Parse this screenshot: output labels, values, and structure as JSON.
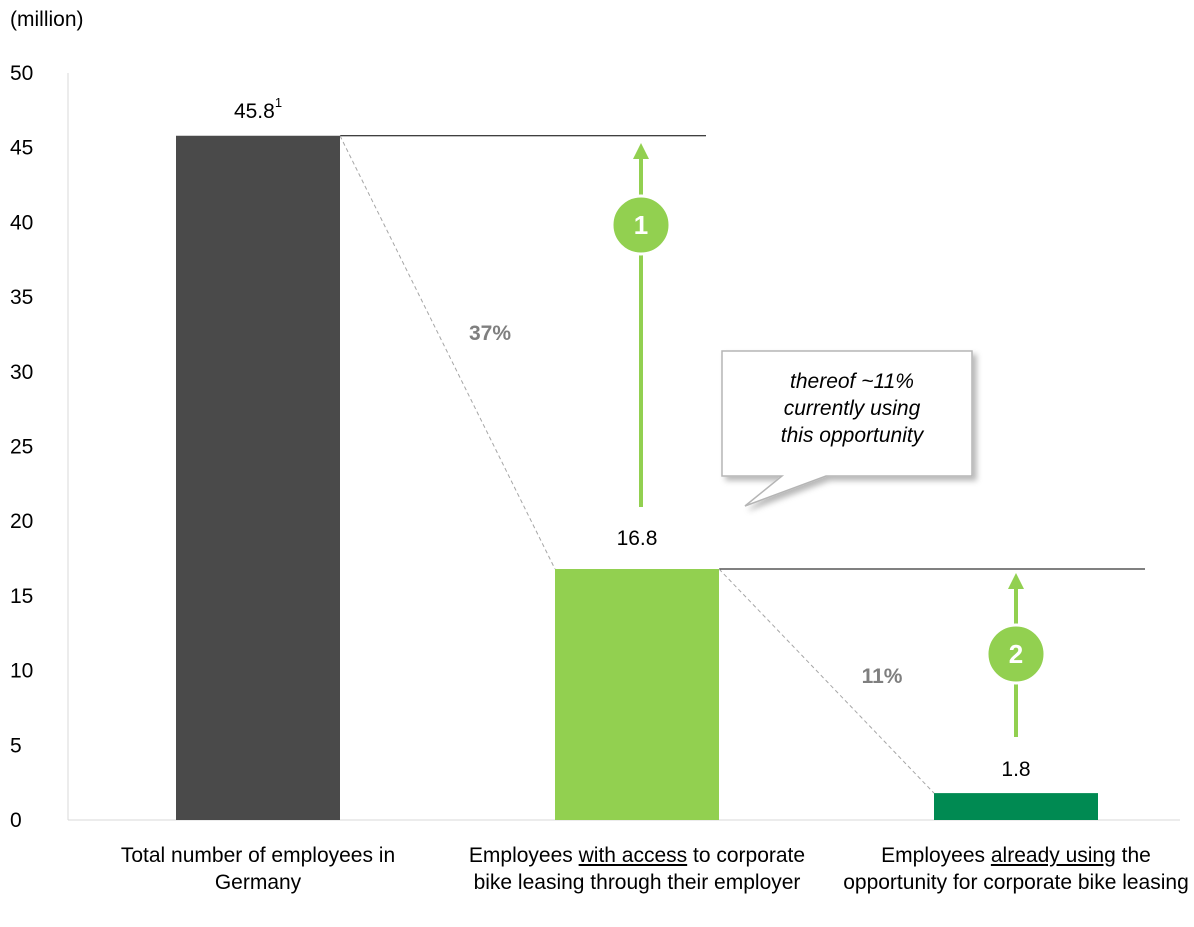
{
  "chart_data": {
    "type": "bar",
    "unit_label": "(million)",
    "ylim": [
      0,
      50
    ],
    "y_ticks": [
      "0",
      "5",
      "10",
      "15",
      "20",
      "25",
      "30",
      "35",
      "40",
      "45",
      "50"
    ],
    "categories": [
      {
        "parts": [
          {
            "text": "Total number of employees in Germany",
            "underline": false
          }
        ]
      },
      {
        "parts": [
          {
            "text": "Employees ",
            "underline": false
          },
          {
            "text": "with access",
            "underline": true
          },
          {
            "text": " to corporate bike leasing through their employer",
            "underline": false
          }
        ]
      },
      {
        "parts": [
          {
            "text": "Employees ",
            "underline": false
          },
          {
            "text": "already using",
            "underline": true
          },
          {
            "text": " the opportunity for corporate bike leasing",
            "underline": false
          }
        ]
      }
    ],
    "values": [
      45.8,
      16.8,
      1.8
    ],
    "value_labels": [
      "45.8",
      "16.8",
      "1.8"
    ],
    "footnote_marker": "1",
    "bar_colors": [
      "#4a4a4a",
      "#92d050",
      "#008a52"
    ],
    "ratio_labels": [
      "37%",
      "11%"
    ],
    "ratio_color": "#7f7f7f",
    "markers": [
      "1",
      "2"
    ],
    "marker_color": "#92d050",
    "callout": [
      "thereof ~11%",
      "currently using",
      "this opportunity"
    ],
    "grid": false
  }
}
